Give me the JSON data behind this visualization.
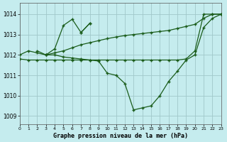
{
  "title": "Graphe pression niveau de la mer (hPa)",
  "bg": "#c5ecee",
  "grid_color": "#a0c8ca",
  "lc": "#1a5c1a",
  "xlim": [
    0,
    23
  ],
  "ylim": [
    1008.6,
    1014.55
  ],
  "yticks": [
    1009,
    1010,
    1011,
    1012,
    1013,
    1014
  ],
  "xticks": [
    0,
    1,
    2,
    3,
    4,
    5,
    6,
    7,
    8,
    9,
    10,
    11,
    12,
    13,
    14,
    15,
    16,
    17,
    18,
    19,
    20,
    21,
    22,
    23
  ],
  "series": [
    {
      "x": [
        2,
        3,
        4,
        5,
        6,
        7,
        8
      ],
      "y": [
        1012.2,
        1012.0,
        1012.3,
        1013.45,
        1013.75,
        1013.1,
        1013.55
      ]
    },
    {
      "x": [
        7,
        8
      ],
      "y": [
        1013.1,
        1013.55
      ]
    },
    {
      "x": [
        3,
        4,
        5,
        6,
        7,
        8,
        9,
        10,
        11,
        12,
        13,
        14,
        15,
        16,
        17,
        18,
        19,
        20,
        21,
        22,
        23
      ],
      "y": [
        1012.0,
        1012.0,
        1011.9,
        1011.85,
        1011.8,
        1011.75,
        1011.7,
        1011.1,
        1011.0,
        1010.6,
        1009.3,
        1009.4,
        1009.5,
        1010.0,
        1010.7,
        1011.2,
        1011.75,
        1012.0,
        1013.35,
        1013.8,
        1014.0
      ]
    },
    {
      "x": [
        0,
        1,
        2,
        3,
        4,
        5,
        6,
        7,
        8,
        9,
        10,
        11,
        12,
        13,
        14,
        15,
        16,
        17,
        18,
        19,
        20,
        21,
        22,
        23
      ],
      "y": [
        1012.0,
        1012.2,
        1012.1,
        1012.0,
        1012.1,
        1012.2,
        1012.35,
        1012.5,
        1012.6,
        1012.7,
        1012.8,
        1012.88,
        1012.95,
        1013.0,
        1013.05,
        1013.1,
        1013.15,
        1013.2,
        1013.3,
        1013.4,
        1013.5,
        1013.8,
        1014.0,
        1014.0
      ]
    },
    {
      "x": [
        0,
        1,
        2,
        3,
        4,
        5,
        6,
        7,
        8,
        9,
        10,
        11,
        12,
        13,
        14,
        15,
        16,
        17,
        18,
        19,
        20,
        21,
        22,
        23
      ],
      "y": [
        1011.8,
        1011.75,
        1011.75,
        1011.75,
        1011.75,
        1011.75,
        1011.75,
        1011.75,
        1011.75,
        1011.75,
        1011.75,
        1011.75,
        1011.75,
        1011.75,
        1011.75,
        1011.75,
        1011.75,
        1011.75,
        1011.75,
        1011.8,
        1012.2,
        1014.0,
        1014.0,
        1014.0
      ]
    }
  ]
}
